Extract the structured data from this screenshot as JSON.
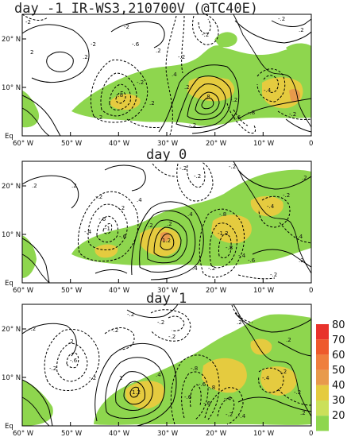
{
  "panels": [
    {
      "title": "day -1 IR-WS3,210700V (@TC40E)",
      "x_ticks": [
        "60° W",
        "50° W",
        "40° W",
        "30° W",
        "20° W",
        "10° W",
        "0"
      ],
      "y_ticks": [
        "20° N",
        "10° N",
        "Eq"
      ],
      "contour_labels": [
        "-2",
        "2",
        ".2",
        "-2",
        "-.6",
        "-2",
        ".2",
        "-.2",
        ".4",
        "-.8",
        "-.2",
        ".2",
        ".2",
        "-.2",
        "-.2",
        "-.8",
        "-.6",
        ".8",
        "-.2",
        "-.2",
        ".2",
        "-.4",
        "-.2",
        "-.2"
      ]
    },
    {
      "title": "day 0",
      "x_ticks": [
        "60° W",
        "50° W",
        "40° W",
        "30° W",
        "20° W",
        "10° W",
        "0"
      ],
      "y_ticks": [
        "20° N",
        "10° N",
        "Eq"
      ],
      "contour_labels": [
        ".2",
        "-.2",
        "-.2",
        "-.6",
        "-.4",
        "-.6",
        "-1",
        ".4",
        "-.2",
        "-.2",
        ".4",
        "-.8",
        ".2",
        "-1.2",
        "-.8",
        ".2",
        "-.4",
        "1.2",
        "-.2",
        "-.2",
        "-.4",
        "-.2",
        "-.6",
        "-.4",
        ".4",
        "-.2",
        ".2",
        ".2",
        ".2"
      ]
    },
    {
      "title": "day 1",
      "x_ticks": [
        "60° W",
        "50° W",
        "40° W",
        "30° W",
        "20° W",
        "10° W",
        "0"
      ],
      "y_ticks": [
        "20° N",
        "10° N",
        "Eq"
      ],
      "contour_labels": [
        "-.2",
        "-.2",
        "-.2",
        "-.2",
        "-.6",
        "-.2",
        "-.2",
        "-.2",
        "-.8",
        "1",
        "-.6",
        "-.6",
        "1.2",
        "-.4",
        "-.2",
        ".2",
        "-.4",
        "-.2",
        "-.2",
        ".4",
        ".2",
        "-.8",
        ".2",
        "-.6",
        ".2",
        "-.4"
      ]
    }
  ],
  "colorbar": {
    "labels": [
      "80",
      "70",
      "60",
      "50",
      "40",
      "30",
      "20"
    ],
    "colors": [
      "#e8332c",
      "#ee5a2c",
      "#ef7f3e",
      "#e89a4c",
      "#e5cb3f",
      "#cbe05a",
      "#8ed64e"
    ]
  }
}
